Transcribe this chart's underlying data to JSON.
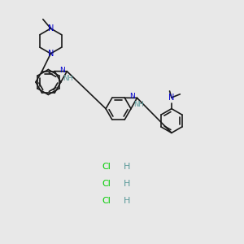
{
  "background_color": "#e8e8e8",
  "bond_color": "#1a1a1a",
  "nitrogen_color": "#0000cc",
  "chlorine_color": "#00cc00",
  "nh_color": "#5a9a9a",
  "figsize": [
    3.0,
    3.0
  ],
  "dpi": 100,
  "xlim": [
    0,
    10
  ],
  "ylim": [
    0,
    10
  ]
}
